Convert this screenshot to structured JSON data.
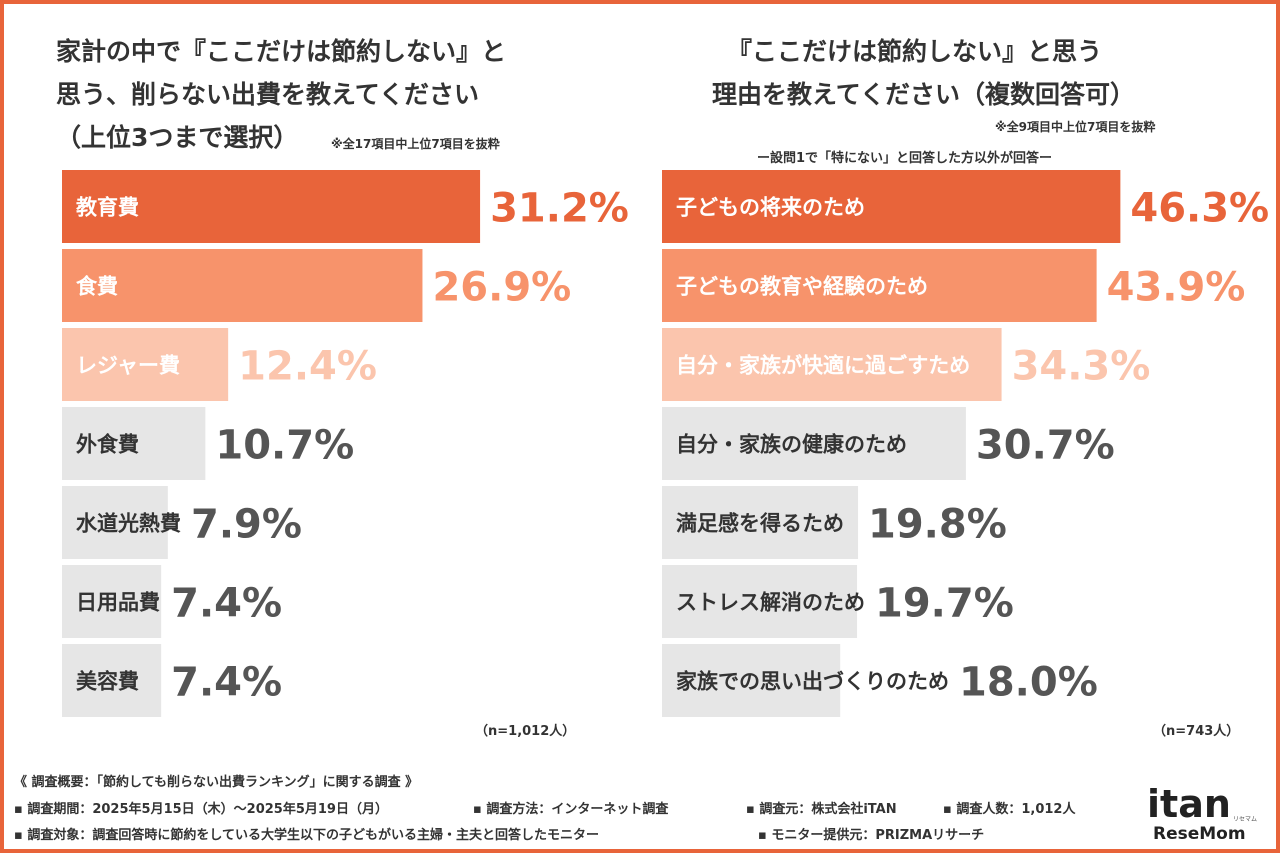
{
  "colors": {
    "frame": "#e8643a",
    "rank1": "#e8643a",
    "rank2": "#f7936b",
    "rank3": "#fbc5ad",
    "other": "#e6e6e6",
    "text_dark": "#555555"
  },
  "left": {
    "title_lines": [
      "家計の中で『ここだけは節約しない』と",
      "思う、削らない出費を教えてください",
      "（上位3つまで選択）"
    ],
    "note": "※全17項目中上位7項目を抜粋",
    "n": "（n=1,012人）"
  },
  "right": {
    "title_lines": [
      "『ここだけは節約しない』と思う",
      "理由を教えてください（複数回答可）"
    ],
    "note": "※全9項目中上位7項目を抜粋",
    "subnote": "ー設問1で「特にない」と回答した方以外が回答ー",
    "n": "（n=743人）"
  },
  "chart_data": [
    {
      "type": "bar",
      "orientation": "horizontal",
      "categories": [
        "教育費",
        "食費",
        "レジャー費",
        "外食費",
        "水道光熱費",
        "日用品費",
        "美容費"
      ],
      "values": [
        31.2,
        26.9,
        12.4,
        10.7,
        7.9,
        7.4,
        7.4
      ],
      "value_labels": [
        "31.2%",
        "26.9%",
        "12.4%",
        "10.7%",
        "7.9%",
        "7.4%",
        "7.4%"
      ],
      "unit": "%"
    },
    {
      "type": "bar",
      "orientation": "horizontal",
      "categories": [
        "子どもの将来のため",
        "子どもの教育や経験のため",
        "自分・家族が快適に過ごすため",
        "自分・家族の健康のため",
        "満足感を得るため",
        "ストレス解消のため",
        "家族での思い出づくりのため"
      ],
      "values": [
        46.3,
        43.9,
        34.3,
        30.7,
        19.8,
        19.7,
        18.0
      ],
      "value_labels": [
        "46.3%",
        "43.9%",
        "34.3%",
        "30.7%",
        "19.8%",
        "19.7%",
        "18.0%"
      ],
      "unit": "%"
    }
  ],
  "footer": {
    "line1": "《 調査概要：「節約しても削らない出費ランキング」に関する調査 》",
    "line2a": "▪ 調査期間：2025年5月15日（木）～2025年5月19日（月）",
    "line2b": "▪ 調査方法：インターネット調査",
    "line2c": "▪ 調査元：株式会社iTAN",
    "line2d": "▪ 調査人数：1,012人",
    "line3a": "▪ 調査対象：調査回答時に節約をしている大学生以下の子どもがいる主婦・主夫と回答したモニター",
    "line3b": "▪ モニター提供元：PRIZMAリサーチ"
  },
  "logo": {
    "main": "itan",
    "kana": "リセマム",
    "sub": "ReseMom"
  }
}
